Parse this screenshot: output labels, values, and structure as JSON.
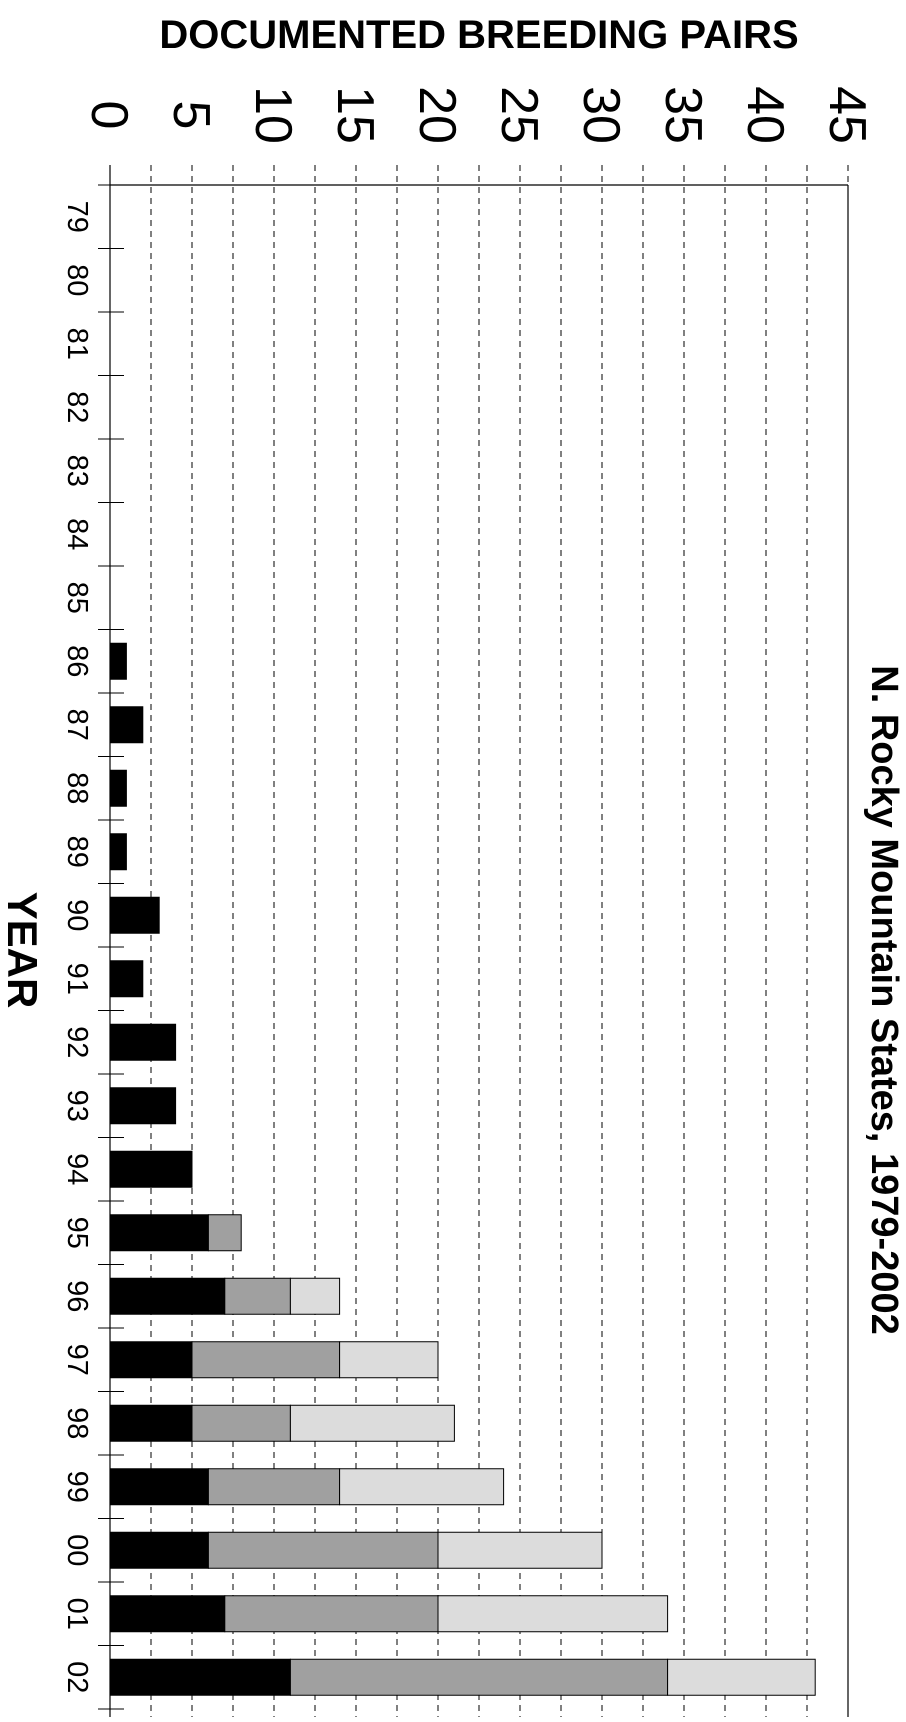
{
  "chart_data": {
    "type": "bar",
    "orientation": "vertical (page rotated 90° clockwise)",
    "stacked": true,
    "title": "N. Rocky Mountain States, 1979-2002",
    "xlabel": "YEAR",
    "ylabel": "DOCUMENTED BREEDING PAIRS",
    "ylim": [
      0,
      45
    ],
    "yticks": [
      "0",
      "5",
      "10",
      "15",
      "20",
      "25",
      "30",
      "35",
      "40",
      "45"
    ],
    "categories": [
      "79",
      "80",
      "81",
      "82",
      "83",
      "84",
      "85",
      "86",
      "87",
      "88",
      "89",
      "90",
      "91",
      "92",
      "93",
      "94",
      "95",
      "96",
      "97",
      "98",
      "99",
      "00",
      "01",
      "02"
    ],
    "grid": "dashed lines at every 2.5 units",
    "legend": "none",
    "series": [
      {
        "color": "#000000",
        "values": [
          0,
          0,
          0,
          0,
          0,
          0,
          0,
          1,
          2,
          1,
          1,
          3,
          2,
          4,
          4,
          5,
          6,
          7,
          5,
          5,
          6,
          6,
          7,
          11
        ]
      },
      {
        "color": "#a0a0a0",
        "values": [
          0,
          0,
          0,
          0,
          0,
          0,
          0,
          0,
          0,
          0,
          0,
          0,
          0,
          0,
          0,
          0,
          2,
          4,
          9,
          6,
          8,
          14,
          13,
          23
        ]
      },
      {
        "color": "#dcdcdc",
        "values": [
          0,
          0,
          0,
          0,
          0,
          0,
          0,
          0,
          0,
          0,
          0,
          0,
          0,
          0,
          0,
          0,
          0,
          3,
          6,
          10,
          10,
          10,
          14,
          9
        ]
      }
    ]
  }
}
